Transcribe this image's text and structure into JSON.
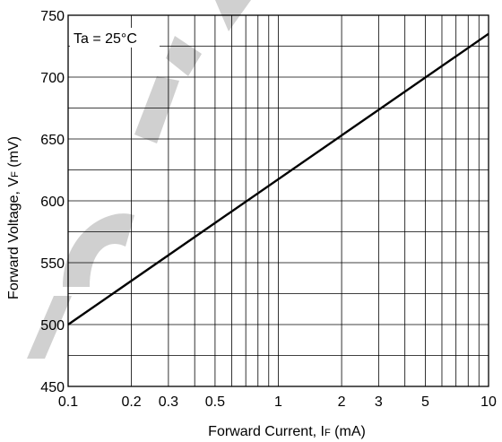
{
  "chart_data": {
    "type": "line",
    "x_scale": "log",
    "xlim": [
      0.1,
      10
    ],
    "ylim": [
      450,
      750
    ],
    "x_ticks": [
      0.1,
      0.2,
      0.3,
      0.5,
      1,
      2,
      3,
      5,
      10
    ],
    "x_tick_labels": [
      "0.1",
      "0.2",
      "0.3",
      "0.5",
      "1",
      "2",
      "3",
      "5",
      "10"
    ],
    "y_ticks": [
      450,
      500,
      550,
      600,
      650,
      700,
      750
    ],
    "y_tick_labels": [
      "450",
      "500",
      "550",
      "600",
      "650",
      "700",
      "750"
    ],
    "x_minor_grid": [
      0.4,
      0.6,
      0.7,
      0.8,
      0.9,
      4,
      6,
      7,
      8,
      9
    ],
    "y_minor_grid": [
      475,
      525,
      575,
      625,
      675,
      725
    ],
    "grid": true,
    "xlabel_main": "Forward Current, I",
    "xlabel_sub": "F",
    "xlabel_unit": " (mA)",
    "ylabel_main": "Forward Voltage, V",
    "ylabel_sub": "F",
    "ylabel_unit": " (mV)",
    "annotation": "Ta = 25°C",
    "series": [
      {
        "x": [
          0.1,
          10
        ],
        "y": [
          500,
          735
        ],
        "color": "#000000"
      }
    ]
  }
}
